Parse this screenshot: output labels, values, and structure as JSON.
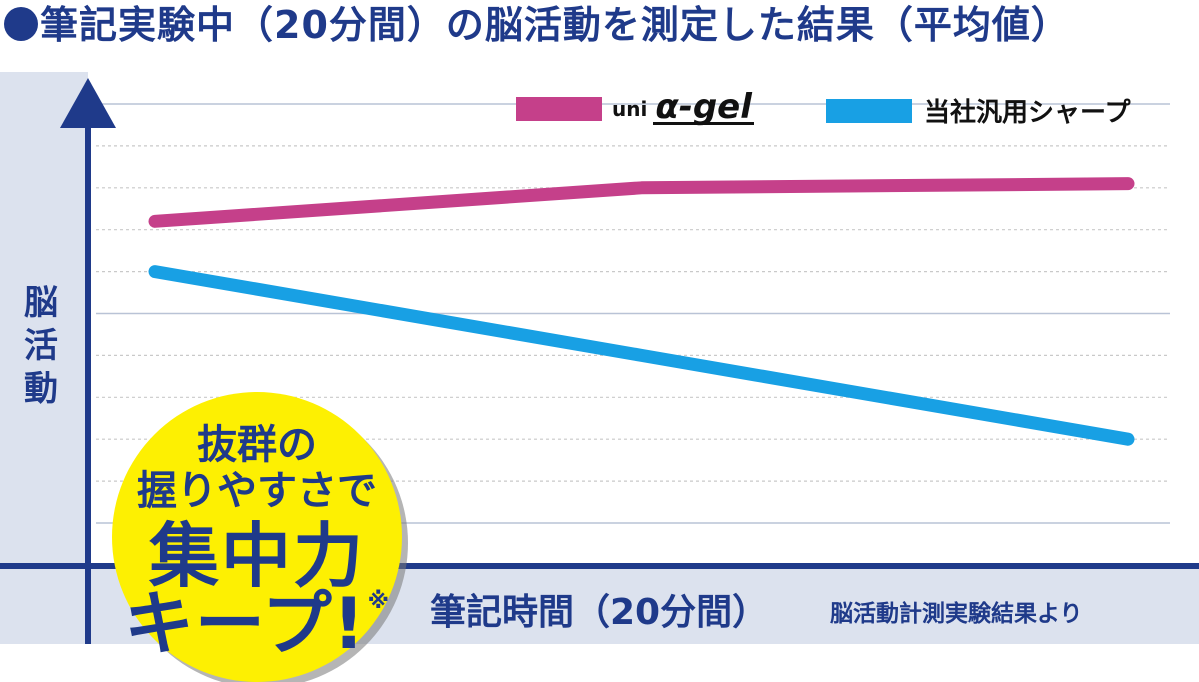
{
  "title": "筆記実験中（20分間）の脳活動を測定した結果（平均値）",
  "colors": {
    "accent": "#1f3a8a",
    "series_alpha": "#c5408a",
    "series_generic": "#18a0e4",
    "panel": "#dce2ee",
    "badge": "#fdf002"
  },
  "legend": {
    "alpha_gel_brand": "uni",
    "alpha_gel_mark": "α-gel",
    "generic_label": "当社汎用シャープ"
  },
  "badge": {
    "line1": "抜群の",
    "line2": "握りやすさで",
    "line3": "集中力",
    "line4": "キープ!",
    "note_mark": "※"
  },
  "source_note": "脳活動計測実験結果より",
  "chart_data": {
    "type": "line",
    "title": "筆記実験中（20分間）の脳活動を測定した結果（平均値）",
    "xlabel": "筆記時間（20分間）",
    "ylabel": "脳活動",
    "x": [
      0,
      10,
      20
    ],
    "xlim": [
      0,
      20
    ],
    "ylim": [
      0,
      10
    ],
    "grid": true,
    "legend_position": "top-right",
    "series": [
      {
        "name": "uni α-gel",
        "color": "#c5408a",
        "values": [
          7.2,
          8.0,
          8.1
        ]
      },
      {
        "name": "当社汎用シャープ",
        "color": "#18a0e4",
        "values": [
          6.0,
          4.0,
          2.0
        ]
      }
    ]
  }
}
